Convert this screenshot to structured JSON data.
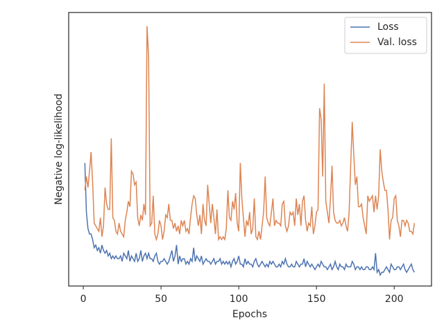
{
  "chart_data": {
    "type": "line",
    "x_label": "Epochs",
    "y_label": "Negative log-likelihood",
    "x": [
      1,
      2,
      3,
      4,
      5,
      6,
      7,
      8,
      9,
      10,
      11,
      12,
      13,
      14,
      15,
      16,
      17,
      18,
      19,
      20,
      21,
      22,
      23,
      24,
      25,
      26,
      27,
      28,
      29,
      30,
      31,
      32,
      33,
      34,
      35,
      36,
      37,
      38,
      39,
      40,
      41,
      42,
      43,
      44,
      45,
      46,
      47,
      48,
      49,
      50,
      51,
      52,
      53,
      54,
      55,
      56,
      57,
      58,
      59,
      60,
      61,
      62,
      63,
      64,
      65,
      66,
      67,
      68,
      69,
      70,
      71,
      72,
      73,
      74,
      75,
      76,
      77,
      78,
      79,
      80,
      81,
      82,
      83,
      84,
      85,
      86,
      87,
      88,
      89,
      90,
      91,
      92,
      93,
      94,
      95,
      96,
      97,
      98,
      99,
      100,
      101,
      102,
      103,
      104,
      105,
      106,
      107,
      108,
      109,
      110,
      111,
      112,
      113,
      114,
      115,
      116,
      117,
      118,
      119,
      120,
      121,
      122,
      123,
      124,
      125,
      126,
      127,
      128,
      129,
      130,
      131,
      132,
      133,
      134,
      135,
      136,
      137,
      138,
      139,
      140,
      141,
      142,
      143,
      144,
      145,
      146,
      147,
      148,
      149,
      150,
      151,
      152,
      153,
      154,
      155,
      156,
      157,
      158,
      159,
      160,
      161,
      162,
      163,
      164,
      165,
      166,
      167,
      168,
      169,
      170,
      171,
      172,
      173,
      174,
      175,
      176,
      177,
      178,
      179,
      180,
      181,
      182,
      183,
      184,
      185,
      186,
      187,
      188,
      189,
      190,
      191,
      192,
      193,
      194,
      195,
      196,
      197,
      198,
      199,
      200,
      201,
      202,
      203,
      204,
      205,
      206,
      207,
      208,
      209,
      210,
      211,
      212,
      213
    ],
    "series": [
      {
        "name": "Loss",
        "color": "#4c72b0",
        "values": [
          45,
          27,
          21,
          19,
          19,
          17,
          14,
          15,
          13,
          14,
          12,
          15,
          13,
          12,
          13,
          11,
          12,
          10,
          11,
          10,
          11,
          10,
          10,
          11,
          9,
          12,
          11,
          10,
          13,
          9,
          11,
          10,
          9,
          12,
          9,
          10,
          13,
          9,
          11,
          12,
          10,
          12,
          10,
          10,
          9,
          11,
          12,
          9,
          8,
          9,
          9,
          10,
          9,
          8,
          9,
          11,
          13,
          9,
          11,
          15,
          8,
          11,
          9,
          10,
          10,
          8,
          9,
          8,
          10,
          9,
          14,
          9,
          11,
          10,
          9,
          11,
          8,
          9,
          10,
          9,
          9,
          8,
          9,
          10,
          8,
          9,
          9,
          10,
          8,
          9,
          8,
          9,
          8,
          9,
          7,
          9,
          10,
          8,
          9,
          11,
          8,
          8,
          7,
          10,
          8,
          9,
          8,
          8,
          7,
          9,
          10,
          8,
          7,
          8,
          9,
          8,
          7,
          8,
          7,
          9,
          8,
          9,
          8,
          7,
          7,
          8,
          7,
          9,
          8,
          10,
          8,
          7,
          7,
          8,
          7,
          7,
          9,
          8,
          7,
          8,
          8,
          10,
          7,
          9,
          8,
          7,
          8,
          7,
          6,
          7,
          8,
          7,
          9,
          8,
          7,
          7,
          6,
          7,
          8,
          6,
          7,
          9,
          7,
          6,
          8,
          7,
          7,
          6,
          8,
          7,
          7,
          7,
          9,
          8,
          6,
          7,
          7,
          6,
          7,
          6,
          6,
          7,
          7,
          6,
          6,
          7,
          6,
          12,
          5,
          6,
          4,
          5,
          5,
          6,
          7,
          6,
          5,
          8,
          7,
          6,
          6,
          7,
          7,
          6,
          7,
          8,
          6,
          5,
          6,
          7,
          8,
          6,
          5
        ]
      },
      {
        "name": "Val. loss",
        "color": "#dd8452",
        "values": [
          35,
          40,
          36,
          42,
          49,
          38,
          23,
          22,
          21,
          20,
          25,
          18,
          22,
          36,
          30,
          28,
          28,
          54,
          25,
          24,
          20,
          19,
          23,
          20,
          19,
          18,
          24,
          27,
          31,
          29,
          42,
          41,
          37,
          38,
          25,
          22,
          26,
          24,
          30,
          26,
          95,
          84,
          22,
          23,
          33,
          19,
          17,
          19,
          24,
          22,
          17,
          20,
          26,
          25,
          30,
          24,
          24,
          21,
          23,
          20,
          22,
          19,
          24,
          22,
          24,
          20,
          21,
          19,
          25,
          30,
          33,
          32,
          26,
          22,
          26,
          19,
          30,
          24,
          22,
          37,
          30,
          23,
          30,
          25,
          19,
          28,
          17,
          18,
          17,
          18,
          17,
          21,
          35,
          25,
          24,
          31,
          28,
          34,
          23,
          20,
          45,
          32,
          25,
          18,
          24,
          22,
          27,
          19,
          21,
          32,
          18,
          17,
          20,
          17,
          22,
          27,
          40,
          25,
          23,
          22,
          27,
          32,
          22,
          24,
          23,
          23,
          22,
          30,
          31,
          22,
          20,
          22,
          27,
          26,
          27,
          22,
          32,
          26,
          30,
          22,
          31,
          33,
          24,
          20,
          23,
          22,
          29,
          19,
          22,
          27,
          28,
          65,
          61,
          40,
          74,
          31,
          27,
          23,
          32,
          44,
          27,
          24,
          23,
          23,
          24,
          22,
          23,
          25,
          22,
          20,
          27,
          44,
          60,
          48,
          37,
          40,
          29,
          29,
          30,
          25,
          22,
          19,
          33,
          31,
          32,
          33,
          27,
          33,
          28,
          33,
          50,
          42,
          38,
          35,
          35,
          28,
          17,
          24,
          25,
          32,
          33,
          24,
          22,
          18,
          24,
          24,
          22,
          24,
          23,
          20,
          20,
          19,
          23
        ]
      }
    ],
    "xlim": [
      -9.4,
      224
    ],
    "xticks": [
      0,
      50,
      100,
      150,
      200
    ],
    "ylim": [
      0,
      100
    ],
    "legend": "upper right"
  }
}
